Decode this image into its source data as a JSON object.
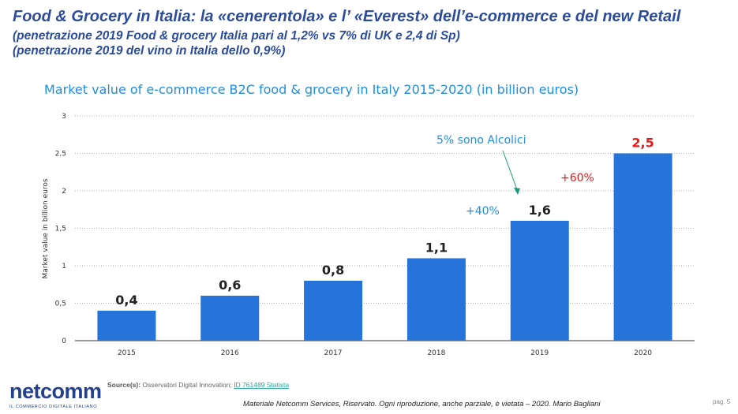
{
  "header": {
    "title": "Food & Grocery in Italia: la «cenerentola» e l’ «Everest» dell’e-commerce e del new Retail",
    "subtitle1": "(penetrazione 2019 Food & grocery Italia pari al 1,2% vs 7% di UK e 2,4 di Sp)",
    "subtitle2": "(penetrazione 2019 del vino in Italia dello 0,9%)"
  },
  "chart_data": {
    "type": "bar",
    "title": "Market value of e-commerce B2C food & grocery in Italy 2015-2020 (in billion euros)",
    "ylabel": "Market value in billion euros",
    "xlabel": "",
    "categories": [
      "2015",
      "2016",
      "2017",
      "2018",
      "2019",
      "2020"
    ],
    "values": [
      0.4,
      0.6,
      0.8,
      1.1,
      1.6,
      2.5
    ],
    "data_labels": [
      "0,4",
      "0,6",
      "0,8",
      "1,1",
      "1,6",
      "2,5"
    ],
    "ylim": [
      0,
      3
    ],
    "yticks": [
      "0",
      "0,5",
      "1",
      "1,5",
      "2",
      "2,5",
      "3"
    ],
    "grid": true,
    "bar_color": "#2673d9",
    "highlight_label_color": "#e31b1b",
    "annotations": [
      {
        "text": "5% sono Alcolici",
        "color": "#1f8fe0"
      },
      {
        "text": "+40%",
        "color": "#1f8fe0"
      },
      {
        "text": "+60%",
        "color": "#e31b1b"
      }
    ]
  },
  "source": {
    "label": "Source(s):",
    "text": "Osservatori Digital Innovation;",
    "link": "ID 761489 Statista"
  },
  "logo": {
    "name": "netcomm",
    "tagline": "IL COMMERCIO DIGITALE ITALIANO"
  },
  "footer": {
    "text": "Materiale Netcomm Services, Riservato. Ogni riproduzione, anche parziale, è vietata – 2020. Mario Bagliani",
    "page": "pag. 5"
  }
}
